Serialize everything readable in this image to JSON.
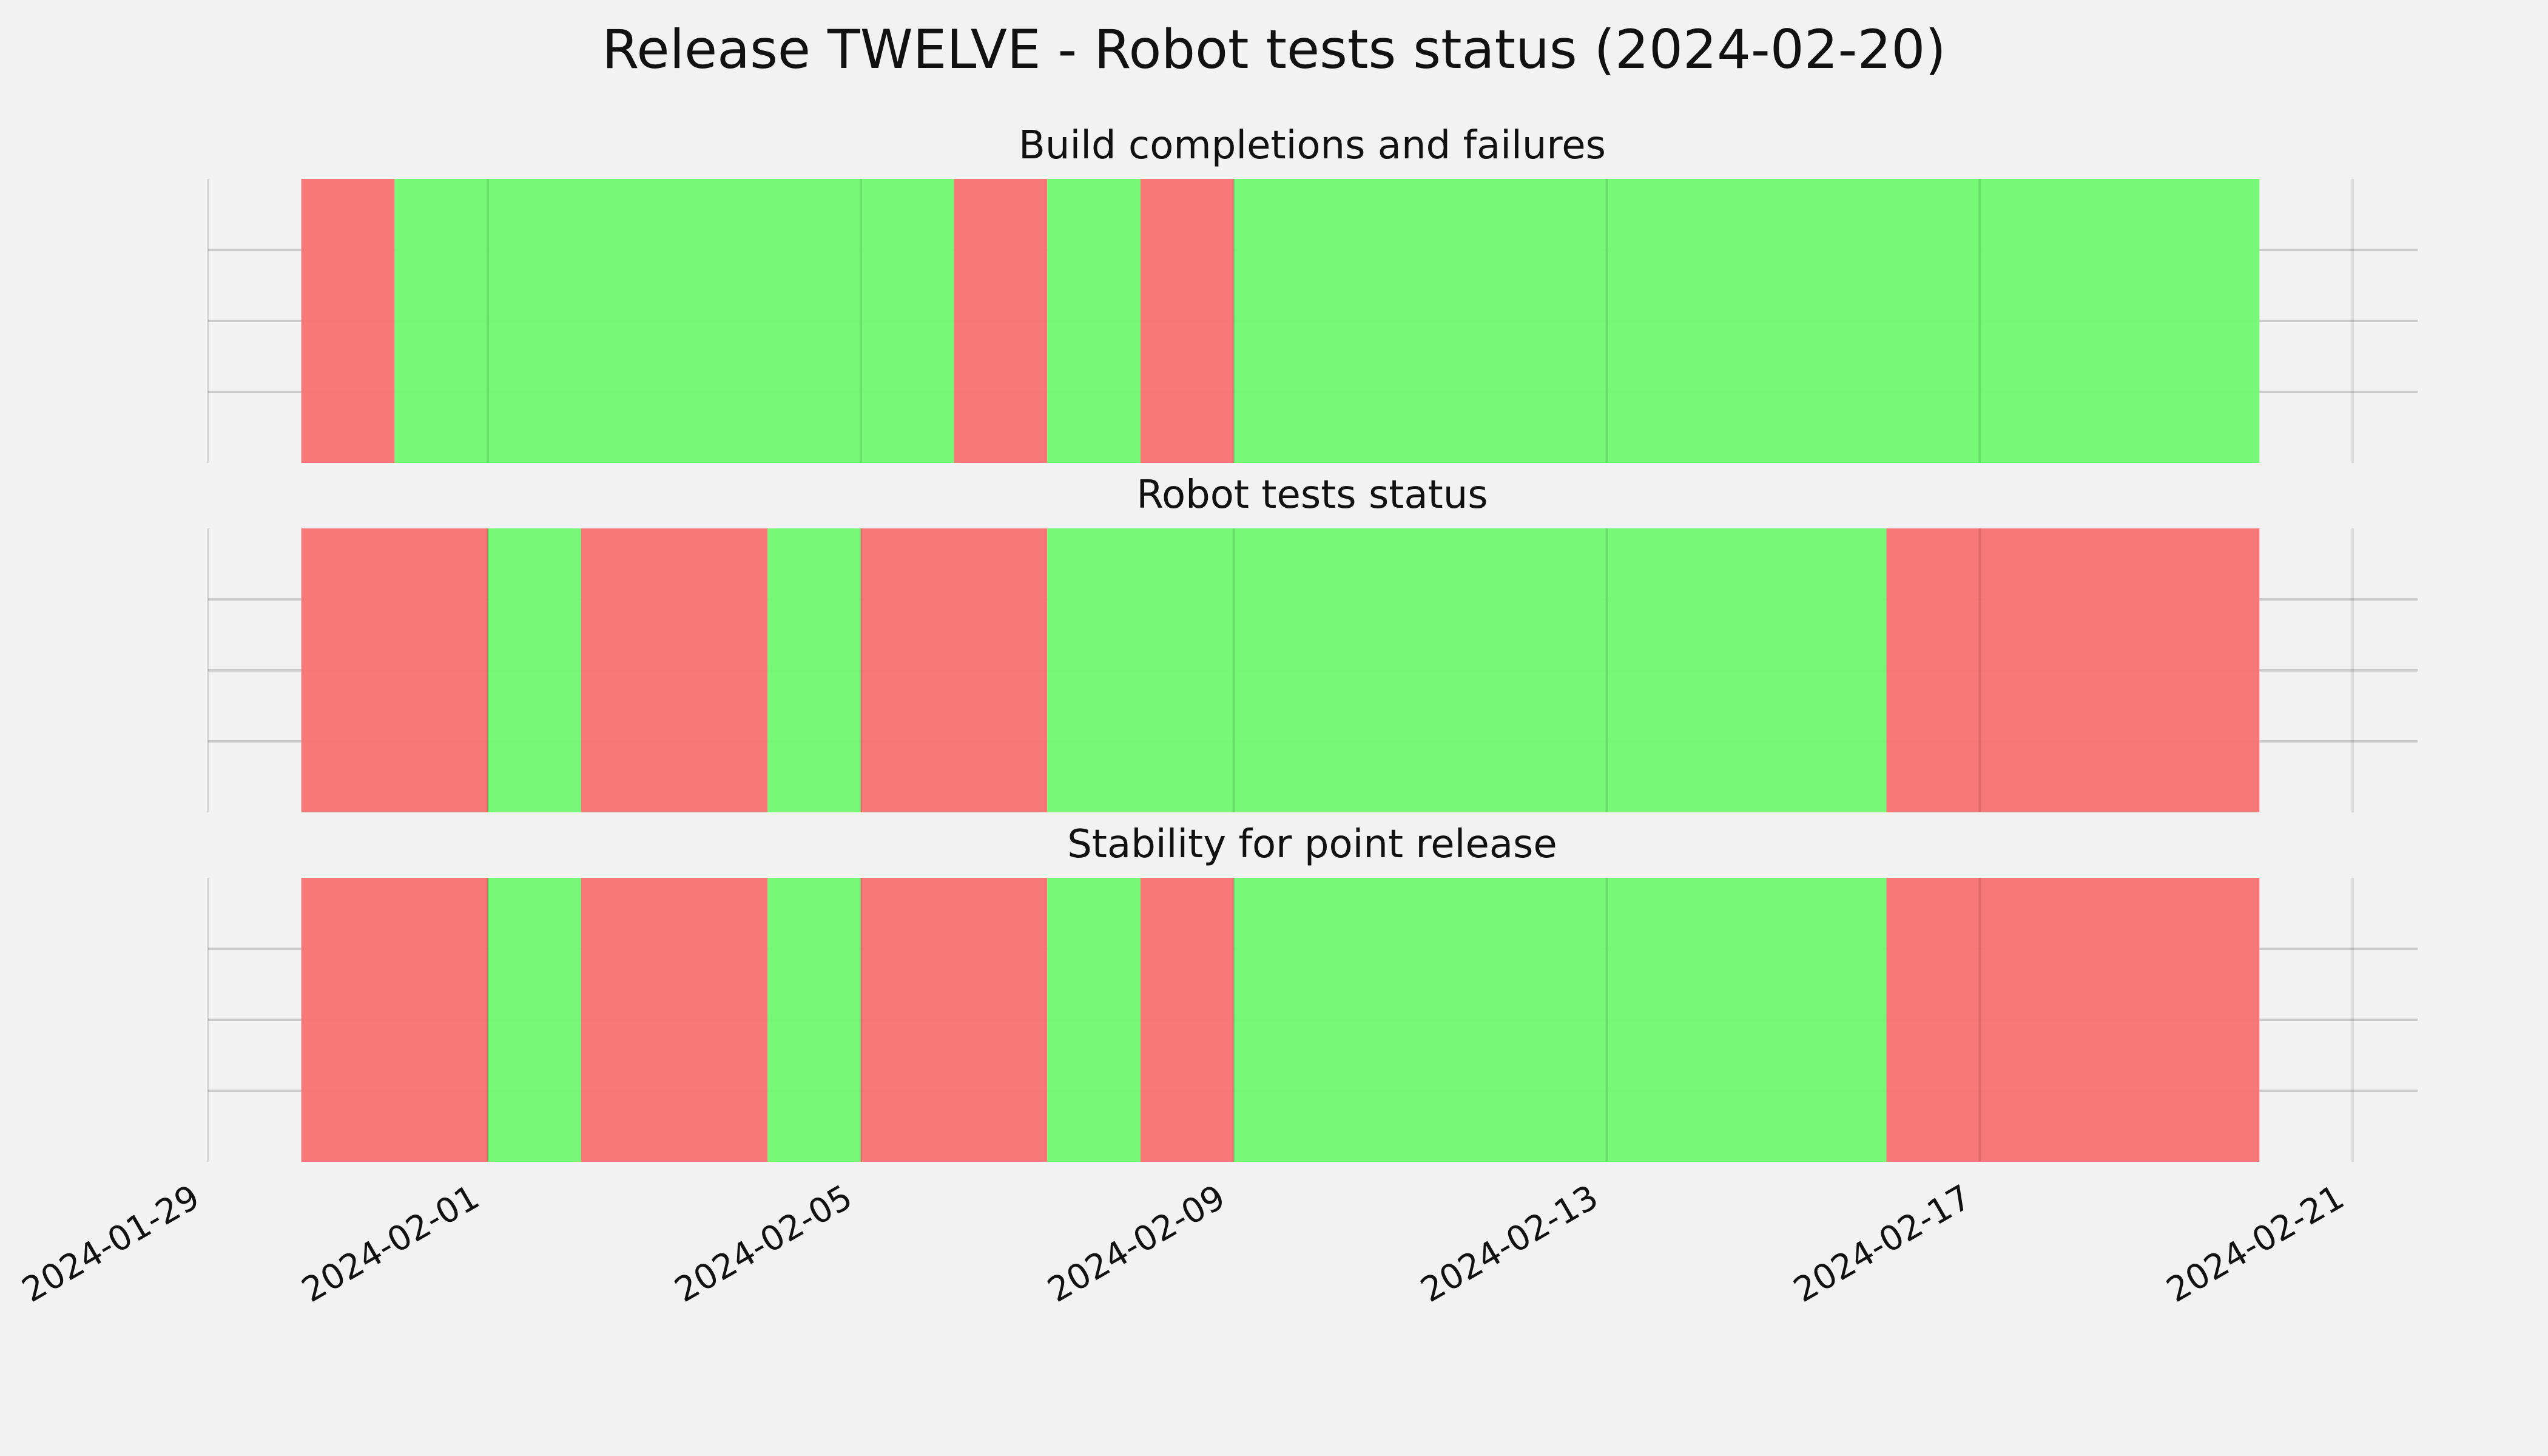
{
  "chart_data": {
    "type": "timeline",
    "title": "Release TWELVE - Robot tests status (2024-02-20)",
    "x_ticks": [
      "2024-01-29",
      "2024-02-01",
      "2024-02-05",
      "2024-02-09",
      "2024-02-13",
      "2024-02-17",
      "2024-02-21"
    ],
    "xlim": [
      "2024-01-29",
      "2024-02-21"
    ],
    "grid": true,
    "colors": {
      "pass": "#74f874",
      "fail": "#f87474",
      "background": "#f2f2f2",
      "grid": "#cbcbcb"
    },
    "panels": [
      {
        "title": "Build completions and failures",
        "segments": [
          {
            "start": "2024-01-30",
            "end": "2024-01-31",
            "status": "fail"
          },
          {
            "start": "2024-01-31",
            "end": "2024-02-06",
            "status": "pass"
          },
          {
            "start": "2024-02-06",
            "end": "2024-02-07",
            "status": "fail"
          },
          {
            "start": "2024-02-07",
            "end": "2024-02-08",
            "status": "pass"
          },
          {
            "start": "2024-02-08",
            "end": "2024-02-09",
            "status": "fail"
          },
          {
            "start": "2024-02-09",
            "end": "2024-02-20",
            "status": "pass"
          }
        ]
      },
      {
        "title": "Robot tests status",
        "segments": [
          {
            "start": "2024-01-30",
            "end": "2024-02-01",
            "status": "fail"
          },
          {
            "start": "2024-02-01",
            "end": "2024-02-02",
            "status": "pass"
          },
          {
            "start": "2024-02-02",
            "end": "2024-02-04",
            "status": "fail"
          },
          {
            "start": "2024-02-04",
            "end": "2024-02-05",
            "status": "pass"
          },
          {
            "start": "2024-02-05",
            "end": "2024-02-07",
            "status": "fail"
          },
          {
            "start": "2024-02-07",
            "end": "2024-02-16",
            "status": "pass"
          },
          {
            "start": "2024-02-16",
            "end": "2024-02-20",
            "status": "fail"
          }
        ]
      },
      {
        "title": "Stability for point release",
        "segments": [
          {
            "start": "2024-01-30",
            "end": "2024-02-01",
            "status": "fail"
          },
          {
            "start": "2024-02-01",
            "end": "2024-02-02",
            "status": "pass"
          },
          {
            "start": "2024-02-02",
            "end": "2024-02-04",
            "status": "fail"
          },
          {
            "start": "2024-02-04",
            "end": "2024-02-05",
            "status": "pass"
          },
          {
            "start": "2024-02-05",
            "end": "2024-02-07",
            "status": "fail"
          },
          {
            "start": "2024-02-07",
            "end": "2024-02-08",
            "status": "pass"
          },
          {
            "start": "2024-02-08",
            "end": "2024-02-09",
            "status": "fail"
          },
          {
            "start": "2024-02-09",
            "end": "2024-02-16",
            "status": "pass"
          },
          {
            "start": "2024-02-16",
            "end": "2024-02-20",
            "status": "fail"
          }
        ]
      }
    ]
  }
}
